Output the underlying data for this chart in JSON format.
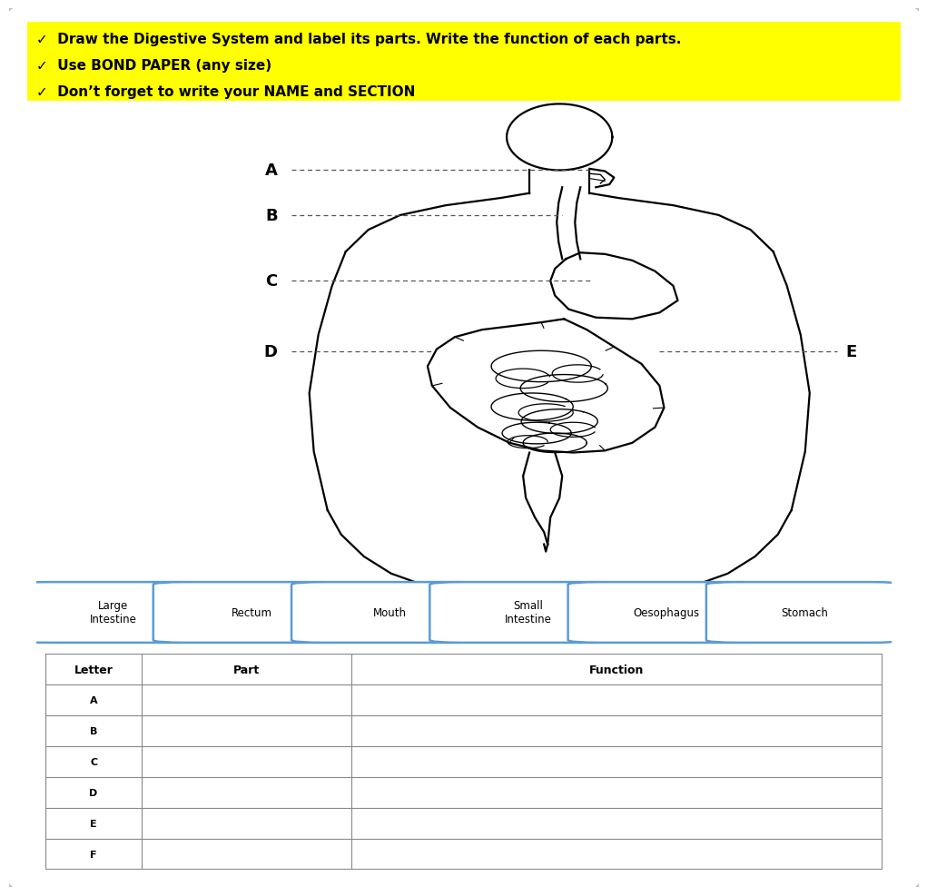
{
  "bg_color": "#ffffff",
  "header_bg": "#ffff00",
  "header_text_color": "#000000",
  "header_lines": [
    "✓  Draw the Digestive System and label its parts. Write the function of each parts.",
    "✓  Use BOND PAPER (any size)",
    "✓  Don’t forget to write your NAME and SECTION"
  ],
  "word_bank": [
    "Large\nIntestine",
    "Rectum",
    "Mouth",
    "Small\nIntestine",
    "Oesophagus",
    "Stomach"
  ],
  "table_letters": [
    "A",
    "B",
    "C",
    "D",
    "E",
    "F"
  ],
  "table_headers": [
    "Letter",
    "Part",
    "Function"
  ],
  "word_bank_border": "#5b9bd5",
  "table_border": "#888888",
  "body_color": "#000000"
}
